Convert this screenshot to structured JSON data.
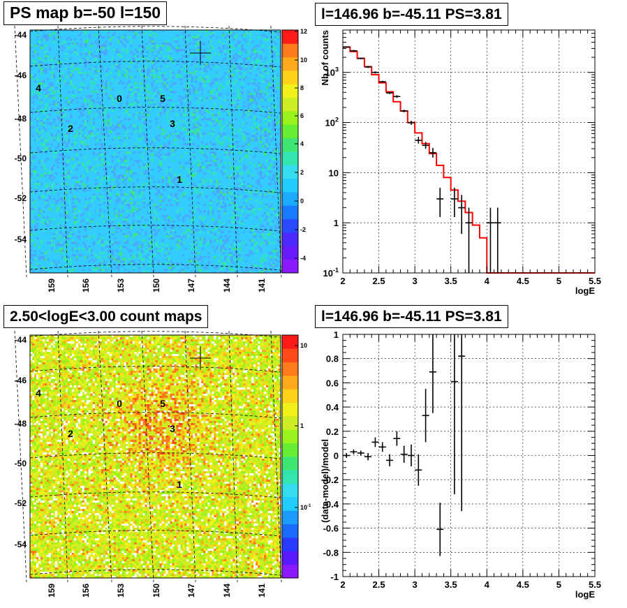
{
  "panels": {
    "ps_map": {
      "title": "PS map b=-50 l=150",
      "y_ticks": [
        "-44",
        "-46",
        "-48",
        "-50",
        "-52",
        "-54"
      ],
      "x_ticks": [
        "159",
        "156",
        "153",
        "150",
        "147",
        "144",
        "141"
      ],
      "colorbar_ticks": [
        "12",
        "10",
        "8",
        "6",
        "4",
        "2",
        "0",
        "-2",
        "-4"
      ],
      "source_labels": [
        "0",
        "1",
        "2",
        "3",
        "4",
        "5"
      ]
    },
    "count_map": {
      "title": "2.50<logE<3.00 count maps",
      "y_ticks": [
        "-44",
        "-46",
        "-48",
        "-50",
        "-52",
        "-54"
      ],
      "x_ticks": [
        "159",
        "156",
        "153",
        "150",
        "147",
        "144",
        "141"
      ],
      "colorbar_ticks": [
        "10",
        "1",
        "10"
      ],
      "colorbar_tick_exponent": "-1",
      "source_labels": [
        "0",
        "1",
        "2",
        "3",
        "4",
        "5"
      ]
    },
    "spectrum": {
      "title": "l=146.96 b=-45.11 PS=3.81"
    },
    "residual": {
      "title": "l=146.96 b=-45.11 PS=3.81"
    }
  },
  "colors": {
    "model_line": "#ff0000",
    "data": "#000000",
    "map_background": "#33ccff",
    "count_background": "#ccee22"
  },
  "chart_data": [
    {
      "type": "heatmap",
      "title": "PS map b=-50 l=150",
      "xlabel": "",
      "ylabel": "",
      "xlim": [
        160.5,
        139.5
      ],
      "ylim": [
        -55.5,
        -43.5
      ],
      "colorbar_range": [
        -5,
        12
      ],
      "sources": [
        {
          "label": "0",
          "l": 153.0,
          "b": -47.0
        },
        {
          "label": "1",
          "l": 148.0,
          "b": -51.0
        },
        {
          "label": "2",
          "l": 157.2,
          "b": -48.3
        },
        {
          "label": "3",
          "l": 148.3,
          "b": -47.9
        },
        {
          "label": "4",
          "l": 160.0,
          "b": -46.6
        },
        {
          "label": "5",
          "l": 149.6,
          "b": -47.0
        }
      ],
      "marker": {
        "l": 146.96,
        "b": -45.11
      }
    },
    {
      "type": "heatmap",
      "title": "2.50<logE<3.00 count maps",
      "xlabel": "",
      "ylabel": "",
      "xlim": [
        160.5,
        139.5
      ],
      "ylim": [
        -55.5,
        -43.5
      ],
      "colorbar_scale": "log",
      "colorbar_range": [
        0.05,
        15
      ]
    },
    {
      "type": "line",
      "title": "l=146.96 b=-45.11 PS=3.81",
      "xlabel": "logE",
      "ylabel": "Nb of counts",
      "xlim": [
        2,
        5.5
      ],
      "ylim": [
        0.1,
        7000
      ],
      "yscale": "log",
      "grid": true,
      "x_ticks": [
        "2",
        "2.5",
        "3",
        "3.5",
        "4",
        "4.5",
        "5",
        "5.5"
      ],
      "y_ticks": [
        {
          "v": 1000,
          "label": "10",
          "exp": "3"
        },
        {
          "v": 100,
          "label": "10",
          "exp": "2"
        },
        {
          "v": 10,
          "label": "10",
          "exp": ""
        },
        {
          "v": 1,
          "label": "1",
          "exp": ""
        },
        {
          "v": 0.1,
          "label": "10",
          "exp": "-1"
        }
      ],
      "series": [
        {
          "name": "model",
          "kind": "step",
          "x_edges": [
            2.0,
            2.1,
            2.2,
            2.3,
            2.4,
            2.5,
            2.6,
            2.7,
            2.8,
            2.9,
            3.0,
            3.1,
            3.2,
            3.3,
            3.4,
            3.5,
            3.6,
            3.7,
            3.8,
            3.9,
            4.0,
            4.1,
            4.2,
            4.3,
            4.4,
            4.5,
            4.6,
            4.7,
            4.8,
            4.9,
            5.0,
            5.1,
            5.2,
            5.3,
            5.4,
            5.5
          ],
          "values": [
            3200,
            2600,
            1900,
            1300,
            900,
            620,
            410,
            260,
            170,
            100,
            62,
            38,
            24,
            14,
            8,
            4.5,
            2.7,
            1.6,
            0.9,
            0.5,
            0.1,
            0.1,
            0.1,
            0.1,
            0.1,
            0.1,
            0.1,
            0.1,
            0.1,
            0.1,
            0.1,
            0.1,
            0.1,
            0.1,
            0.1
          ]
        },
        {
          "name": "data",
          "kind": "errorbar",
          "x": [
            2.05,
            2.15,
            2.25,
            2.35,
            2.45,
            2.55,
            2.65,
            2.75,
            2.85,
            2.95,
            3.05,
            3.15,
            3.25,
            3.35,
            3.55,
            3.65,
            3.75,
            4.05,
            4.15
          ],
          "y": [
            3200,
            2700,
            1900,
            1280,
            1000,
            650,
            390,
            330,
            170,
            99,
            44,
            35,
            25,
            3,
            3,
            2,
            1,
            1,
            1
          ],
          "ylo": [
            3100,
            2600,
            1830,
            1220,
            950,
            620,
            370,
            310,
            160,
            90,
            38,
            30,
            20,
            1.3,
            1.3,
            0.6,
            0.1,
            0.1,
            0.1
          ],
          "yhi": [
            3300,
            2800,
            1970,
            1340,
            1050,
            680,
            410,
            350,
            180,
            108,
            52,
            41,
            31,
            5,
            5,
            3.6,
            2,
            2,
            2
          ]
        }
      ]
    },
    {
      "type": "scatter",
      "title": "l=146.96 b=-45.11 PS=3.81",
      "xlabel": "logE",
      "ylabel": "(data-model)/model",
      "xlim": [
        2,
        5.5
      ],
      "ylim": [
        -1,
        1
      ],
      "grid": true,
      "x_ticks": [
        "2",
        "2.5",
        "3",
        "3.5",
        "4",
        "4.5",
        "5",
        "5.5"
      ],
      "y_ticks": [
        "1",
        "0.8",
        "0.6",
        "0.4",
        "0.2",
        "0",
        "-0.2",
        "-0.4",
        "-0.6",
        "-0.8",
        "-1"
      ],
      "series": [
        {
          "name": "residual",
          "x": [
            2.05,
            2.15,
            2.25,
            2.35,
            2.45,
            2.55,
            2.65,
            2.75,
            2.85,
            2.95,
            3.05,
            3.15,
            3.25,
            3.35,
            3.55,
            3.65
          ],
          "y": [
            0.0,
            0.03,
            0.02,
            -0.01,
            0.11,
            0.07,
            -0.04,
            0.14,
            0.01,
            0.0,
            -0.12,
            0.33,
            0.69,
            -0.61,
            0.61,
            0.82
          ],
          "err": [
            0.02,
            0.02,
            0.02,
            0.03,
            0.04,
            0.04,
            0.05,
            0.06,
            0.07,
            0.09,
            0.13,
            0.22,
            0.34,
            0.22,
            0.93,
            1.28
          ]
        }
      ]
    }
  ]
}
